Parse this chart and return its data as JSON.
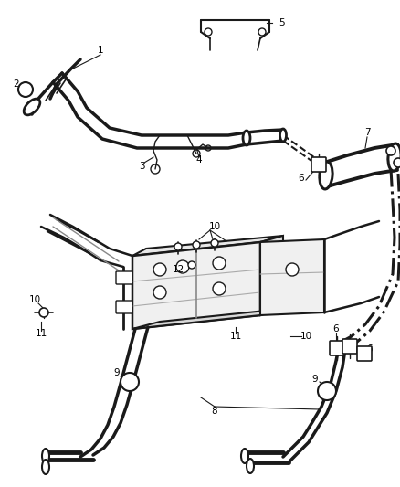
{
  "bg_color": "#ffffff",
  "line_color": "#1a1a1a",
  "figsize": [
    4.38,
    5.33
  ],
  "dpi": 100,
  "label_fs": 7.5
}
